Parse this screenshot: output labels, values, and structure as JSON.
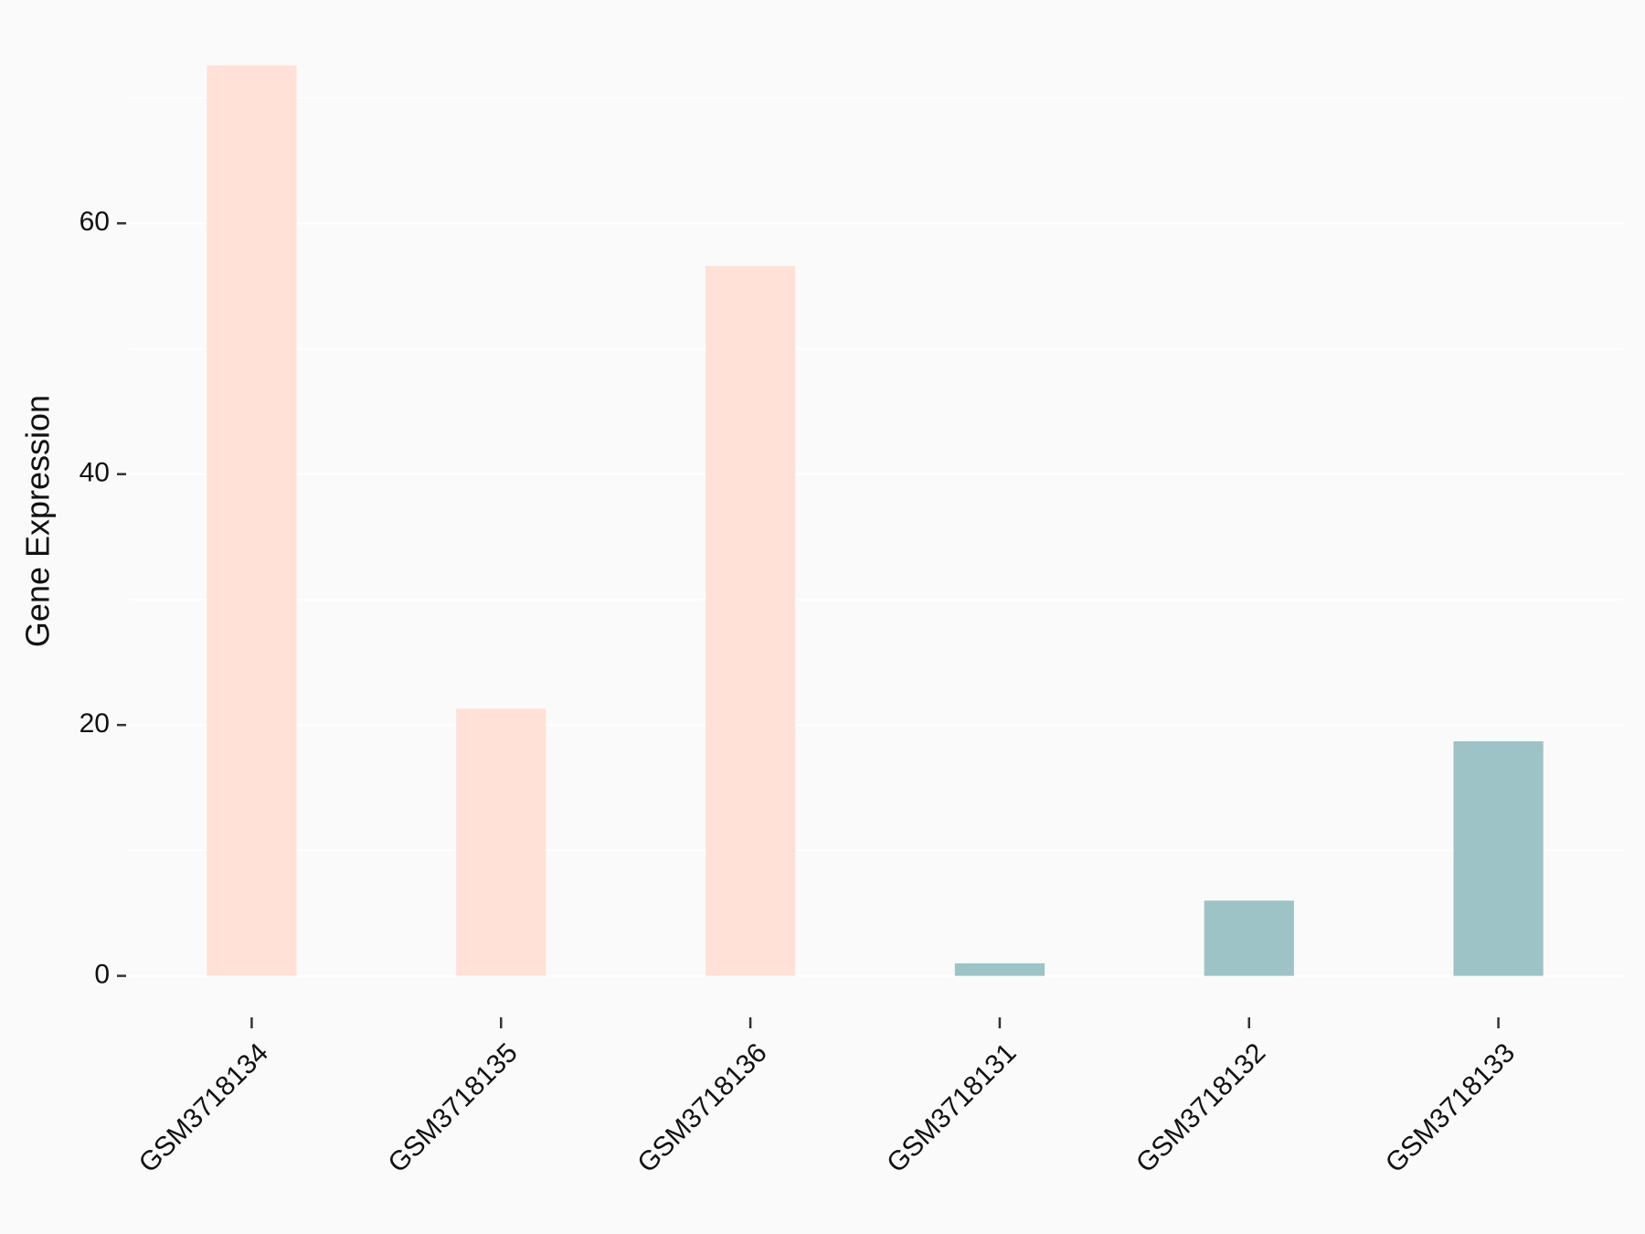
{
  "chart_data": {
    "type": "bar",
    "y_label": "Gene Expression",
    "categories": [
      "GSM3718134",
      "GSM3718135",
      "GSM3718136",
      "GSM3718131",
      "GSM3718132",
      "GSM3718133"
    ],
    "values": [
      72.6,
      21.3,
      56.6,
      1.0,
      6.0,
      18.7
    ],
    "colors": [
      "#FFE1D7",
      "#FFE1D7",
      "#FFE1D7",
      "#9DC3C7",
      "#9DC3C7",
      "#9DC3C7"
    ],
    "ylim": [
      -3.6,
      76.2
    ],
    "yticks": [
      0,
      20,
      40,
      60
    ],
    "minor_yticks": [
      10,
      30,
      50,
      70
    ],
    "grid": true
  }
}
